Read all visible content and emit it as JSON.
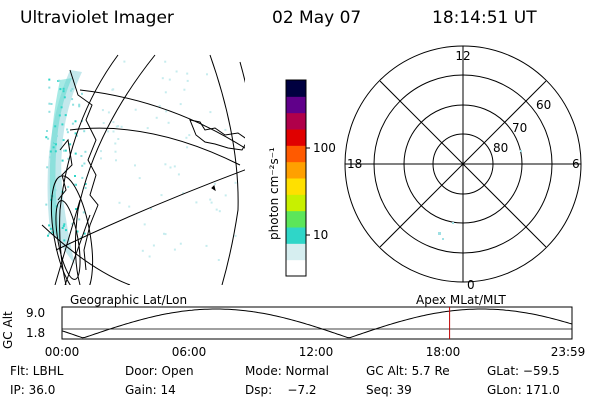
{
  "header": {
    "instrument": "Ultraviolet Imager",
    "date": "02 May 07",
    "time": "18:14:51 UT"
  },
  "colorbar": {
    "unit_label": "photon cm⁻²s⁻¹",
    "ticks": [
      {
        "label": "100",
        "value": 100
      },
      {
        "label": "10",
        "value": 10
      }
    ],
    "colors": [
      "#ffffff",
      "#d6eef0",
      "#2fd6c8",
      "#5ce65a",
      "#c8f000",
      "#ffe000",
      "#ffa000",
      "#ff5a00",
      "#e00000",
      "#b0004a",
      "#60008a",
      "#000040"
    ]
  },
  "polar_plot": {
    "hour_labels": {
      "top": "12",
      "left": "18",
      "right": "6",
      "bottom": "0"
    },
    "lat_labels": [
      "60",
      "70",
      "80"
    ]
  },
  "orbit_panel": {
    "left_title": "Geographic Lat/Lon",
    "right_title": "Apex MLat/MLT",
    "ylabel": "GC Alt",
    "y_ticks": [
      "9.0",
      "1.8"
    ],
    "x_ticks": [
      "00:00",
      "06:00",
      "12:00",
      "18:00",
      "23:59"
    ],
    "current_time_fraction": 0.76,
    "marker_color": "#c00000"
  },
  "info": {
    "filter": "Flt: LBHL",
    "door": "Door: Open",
    "mode": "Mode: Normal",
    "gc_alt": "GC Alt: 5.7 Re",
    "glat": "GLat: −59.5",
    "ip": "IP: 36.0",
    "gain": "Gain: 14",
    "dsp": "Dsp:    −7.2",
    "seq": "Seq: 39",
    "glon": "GLon: 171.0"
  }
}
